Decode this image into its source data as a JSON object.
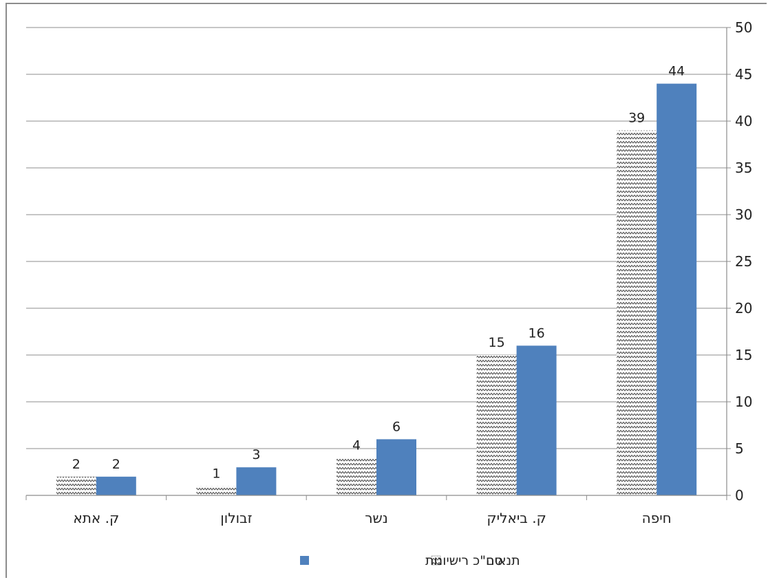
{
  "chart_data": {
    "type": "bar",
    "categories": [
      "ק. אתא",
      "זבולון",
      "נשר",
      "ק. ביאליק",
      "חיפה"
    ],
    "series": [
      {
        "name": "תנאים",
        "values": [
          2,
          1,
          4,
          15,
          39
        ],
        "color": "#ffffff",
        "pattern": "zigzag-dark"
      },
      {
        "name": "סה\"כ רישיונות",
        "values": [
          2,
          3,
          6,
          16,
          44
        ],
        "color": "#4f81bd"
      }
    ],
    "ylim": [
      0,
      50
    ],
    "yticks": [
      0,
      5,
      10,
      15,
      20,
      25,
      30,
      35,
      40,
      45,
      50
    ],
    "y_axis_side": "right",
    "grid": true,
    "legend_position": "bottom",
    "title": "",
    "xlabel": "",
    "ylabel": ""
  }
}
